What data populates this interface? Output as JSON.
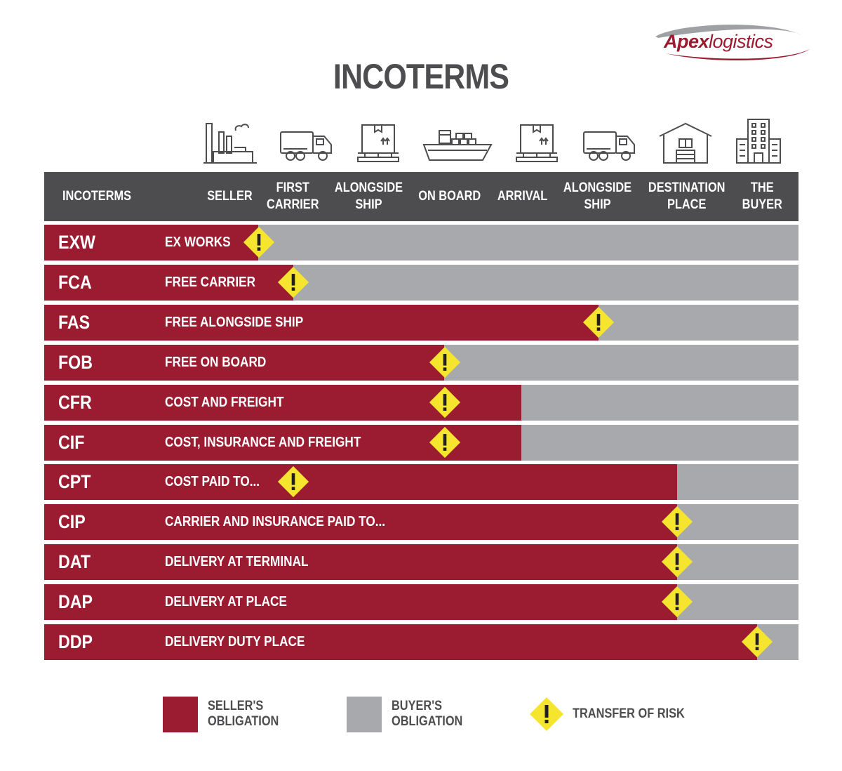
{
  "brand": {
    "name": "Apex",
    "suffix": "logistics",
    "accent": "#9b1b30"
  },
  "title": "INCOTERMS",
  "colors": {
    "seller": "#9b1b30",
    "buyer": "#a7a9ac",
    "header": "#4d4d4f",
    "risk": "#f5e52e"
  },
  "header": {
    "incoterms_label": "INCOTERMS",
    "stages": [
      {
        "label": "SELLER",
        "icon": "factory-icon"
      },
      {
        "label": "FIRST\nCARRIER",
        "icon": "truck-icon"
      },
      {
        "label": "ALONGSIDE\nSHIP",
        "icon": "pallet-box-icon"
      },
      {
        "label": "ON BOARD",
        "icon": "cargo-ship-icon"
      },
      {
        "label": "ARRIVAL",
        "icon": "pallet-box-icon"
      },
      {
        "label": "ALONGSIDE\nSHIP",
        "icon": "truck-icon"
      },
      {
        "label": "DESTINATION\nPLACE",
        "icon": "warehouse-icon"
      },
      {
        "label": "THE\nBUYER",
        "icon": "office-building-icon"
      }
    ]
  },
  "terms": [
    {
      "code": "EXW",
      "name": "EX WORKS",
      "seller_until": "SELLER",
      "risk_at": "SELLER"
    },
    {
      "code": "FCA",
      "name": "FREE CARRIER",
      "seller_until": "FIRST CARRIER",
      "risk_at": "FIRST CARRIER"
    },
    {
      "code": "FAS",
      "name": "FREE ALONGSIDE SHIP",
      "seller_until": "ALONGSIDE SHIP",
      "risk_at": "ALONGSIDE SHIP"
    },
    {
      "code": "FOB",
      "name": "FREE ON BOARD",
      "seller_until": "ON BOARD",
      "risk_at": "ON BOARD"
    },
    {
      "code": "CFR",
      "name": "COST AND FREIGHT",
      "seller_until": "ARRIVAL",
      "risk_at": "ON BOARD"
    },
    {
      "code": "CIF",
      "name": "COST, INSURANCE AND FREIGHT",
      "seller_until": "ARRIVAL",
      "risk_at": "ON BOARD"
    },
    {
      "code": "CPT",
      "name": "COST PAID TO...",
      "seller_until": "DESTINATION PLACE",
      "risk_at": "FIRST CARRIER"
    },
    {
      "code": "CIP",
      "name": "CARRIER AND INSURANCE PAID TO...",
      "seller_until": "DESTINATION PLACE",
      "risk_at": "DESTINATION PLACE"
    },
    {
      "code": "DAT",
      "name": "DELIVERY AT TERMINAL",
      "seller_until": "DESTINATION PLACE",
      "risk_at": "DESTINATION PLACE"
    },
    {
      "code": "DAP",
      "name": "DELIVERY AT PLACE",
      "seller_until": "DESTINATION PLACE",
      "risk_at": "DESTINATION PLACE"
    },
    {
      "code": "DDP",
      "name": "DELIVERY DUTY PLACE",
      "seller_until": "THE BUYER",
      "risk_at": "THE BUYER"
    }
  ],
  "legend": {
    "seller": "SELLER'S\nOBLIGATION",
    "buyer": "BUYER'S\nOBLIGATION",
    "risk": "TRANSFER OF RISK",
    "risk_icon": "warning-diamond-icon"
  }
}
